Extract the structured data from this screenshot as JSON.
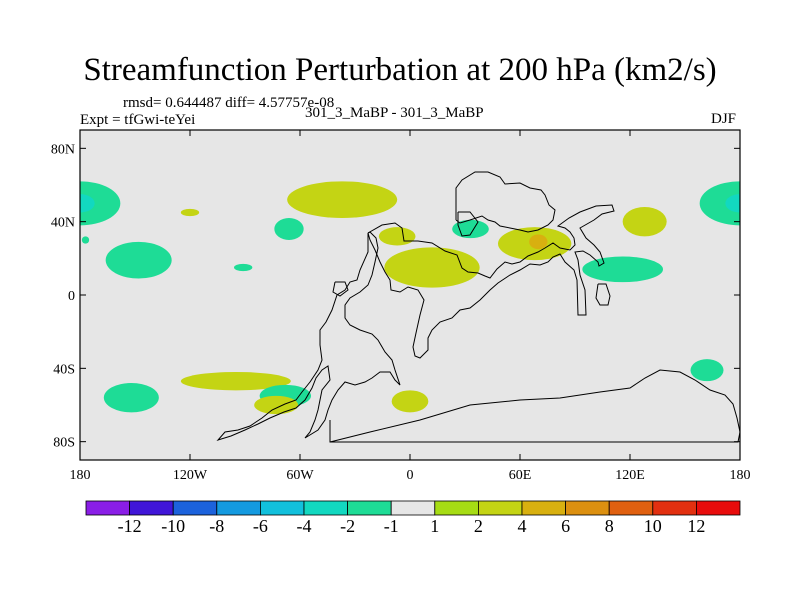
{
  "title": "Streamfunction Perturbation at 200 hPa (km2/s)",
  "rmsd_line": "rmsd= 0.644487 diff= 4.57757e-08",
  "expt_line": "Expt = tfGwi-teYei",
  "run_line": "301_3_MaBP - 301_3_MaBP",
  "season": "DJF",
  "chart_data": {
    "type": "map-contour",
    "variable": "Streamfunction Perturbation",
    "level": "200 hPa",
    "units": "km2/s",
    "lon_range": [
      -180,
      180
    ],
    "lat_range": [
      -90,
      90
    ],
    "x_ticks": [
      {
        "lon": -180,
        "label": "180"
      },
      {
        "lon": -120,
        "label": "120W"
      },
      {
        "lon": -60,
        "label": "60W"
      },
      {
        "lon": 0,
        "label": "0"
      },
      {
        "lon": 60,
        "label": "60E"
      },
      {
        "lon": 120,
        "label": "120E"
      },
      {
        "lon": 180,
        "label": "180"
      }
    ],
    "y_ticks": [
      {
        "lat": 80,
        "label": "80N"
      },
      {
        "lat": 40,
        "label": "40N"
      },
      {
        "lat": 0,
        "label": "0"
      },
      {
        "lat": -40,
        "label": "40S"
      },
      {
        "lat": -80,
        "label": "80S"
      }
    ],
    "colorbar": {
      "colors": [
        "#8a1ee6",
        "#4016d8",
        "#1c62dc",
        "#149ae0",
        "#12c0dc",
        "#12d8c0",
        "#1edc96",
        "#e6e6e6",
        "#a6dc14",
        "#c4d414",
        "#d8b010",
        "#dc9010",
        "#e06010",
        "#e23010",
        "#e80c0c"
      ],
      "labels": [
        "-12",
        "-10",
        "-8",
        "-6",
        "-4",
        "-2",
        "-1",
        "1",
        "2",
        "4",
        "6",
        "8",
        "10",
        "12"
      ]
    },
    "features": [
      {
        "name": "N Pacific west negative",
        "lon": -180,
        "lat": 50,
        "rlon": 22,
        "rlat": 12,
        "value": -2
      },
      {
        "name": "N Pacific west core",
        "lon": -180,
        "lat": 50,
        "rlon": 8,
        "rlat": 5,
        "value": -4
      },
      {
        "name": "N Pacific east negative",
        "lon": 180,
        "lat": 50,
        "rlon": 22,
        "rlat": 12,
        "value": -2
      },
      {
        "name": "N Pacific east core",
        "lon": 180,
        "lat": 50,
        "rlon": 8,
        "rlat": 5,
        "value": -4
      },
      {
        "name": "N Atlantic positive",
        "lon": -37,
        "lat": 52,
        "rlon": 30,
        "rlat": 10,
        "value": 2
      },
      {
        "name": "small positive",
        "lon": -120,
        "lat": 45,
        "rlon": 5,
        "rlat": 2,
        "value": 2
      },
      {
        "name": "tropical E Pacific negative",
        "lon": -148,
        "lat": 19,
        "rlon": 18,
        "rlat": 10,
        "value": -2
      },
      {
        "name": "small negative",
        "lon": -177,
        "lat": 30,
        "rlon": 2,
        "rlat": 2,
        "value": -2
      },
      {
        "name": "Mexico negative small",
        "lon": -91,
        "lat": 15,
        "rlon": 5,
        "rlat": 2,
        "value": -2
      },
      {
        "name": "Atlantic negative",
        "lon": -66,
        "lat": 36,
        "rlon": 8,
        "rlat": 6,
        "value": -2
      },
      {
        "name": "Mediterranean positive",
        "lon": -7,
        "lat": 32,
        "rlon": 10,
        "rlat": 5,
        "value": 2
      },
      {
        "name": "Middle East negative",
        "lon": 33,
        "lat": 36,
        "rlon": 10,
        "rlat": 5,
        "value": -2
      },
      {
        "name": "N Africa positive",
        "lon": 12,
        "lat": 15,
        "rlon": 26,
        "rlat": 11,
        "value": 2
      },
      {
        "name": "Asia positive",
        "lon": 68,
        "lat": 28,
        "rlon": 20,
        "rlat": 9,
        "value": 2
      },
      {
        "name": "Tibet core",
        "lon": 70,
        "lat": 29,
        "rlon": 5,
        "rlat": 4,
        "value": 4
      },
      {
        "name": "W Pacific negative",
        "lon": 116,
        "lat": 14,
        "rlon": 22,
        "rlat": 7,
        "value": -2
      },
      {
        "name": "N Pacific positive",
        "lon": 128,
        "lat": 40,
        "rlon": 12,
        "rlat": 8,
        "value": 2
      },
      {
        "name": "S Pacific negative",
        "lon": -152,
        "lat": -56,
        "rlon": 15,
        "rlat": 8,
        "value": -2
      },
      {
        "name": "S America positive",
        "lon": -95,
        "lat": -47,
        "rlon": 30,
        "rlat": 5,
        "value": 2
      },
      {
        "name": "S Atlantic negative",
        "lon": -68,
        "lat": -55,
        "rlon": 14,
        "rlat": 6,
        "value": -2
      },
      {
        "name": "S Atlantic positive",
        "lon": -73,
        "lat": -60,
        "rlon": 12,
        "rlat": 5,
        "value": 2
      },
      {
        "name": "Southern Ocean positive",
        "lon": 0,
        "lat": -58,
        "rlon": 10,
        "rlat": 6,
        "value": 2
      },
      {
        "name": "SE Pacific negative",
        "lon": 162,
        "lat": -41,
        "rlon": 9,
        "rlat": 6,
        "value": -2
      }
    ]
  }
}
